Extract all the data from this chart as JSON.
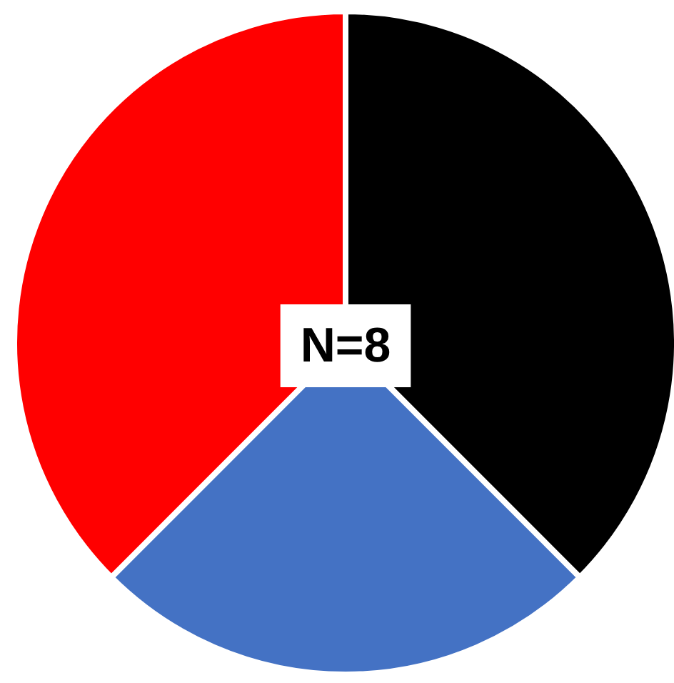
{
  "chart_data": {
    "type": "pie",
    "categories": [
      null,
      null,
      null
    ],
    "values": [
      37.5,
      25,
      37.5
    ],
    "colors": [
      "#000000",
      "#4472c4",
      "#ff0000"
    ],
    "annotations": [
      "N=8"
    ]
  }
}
